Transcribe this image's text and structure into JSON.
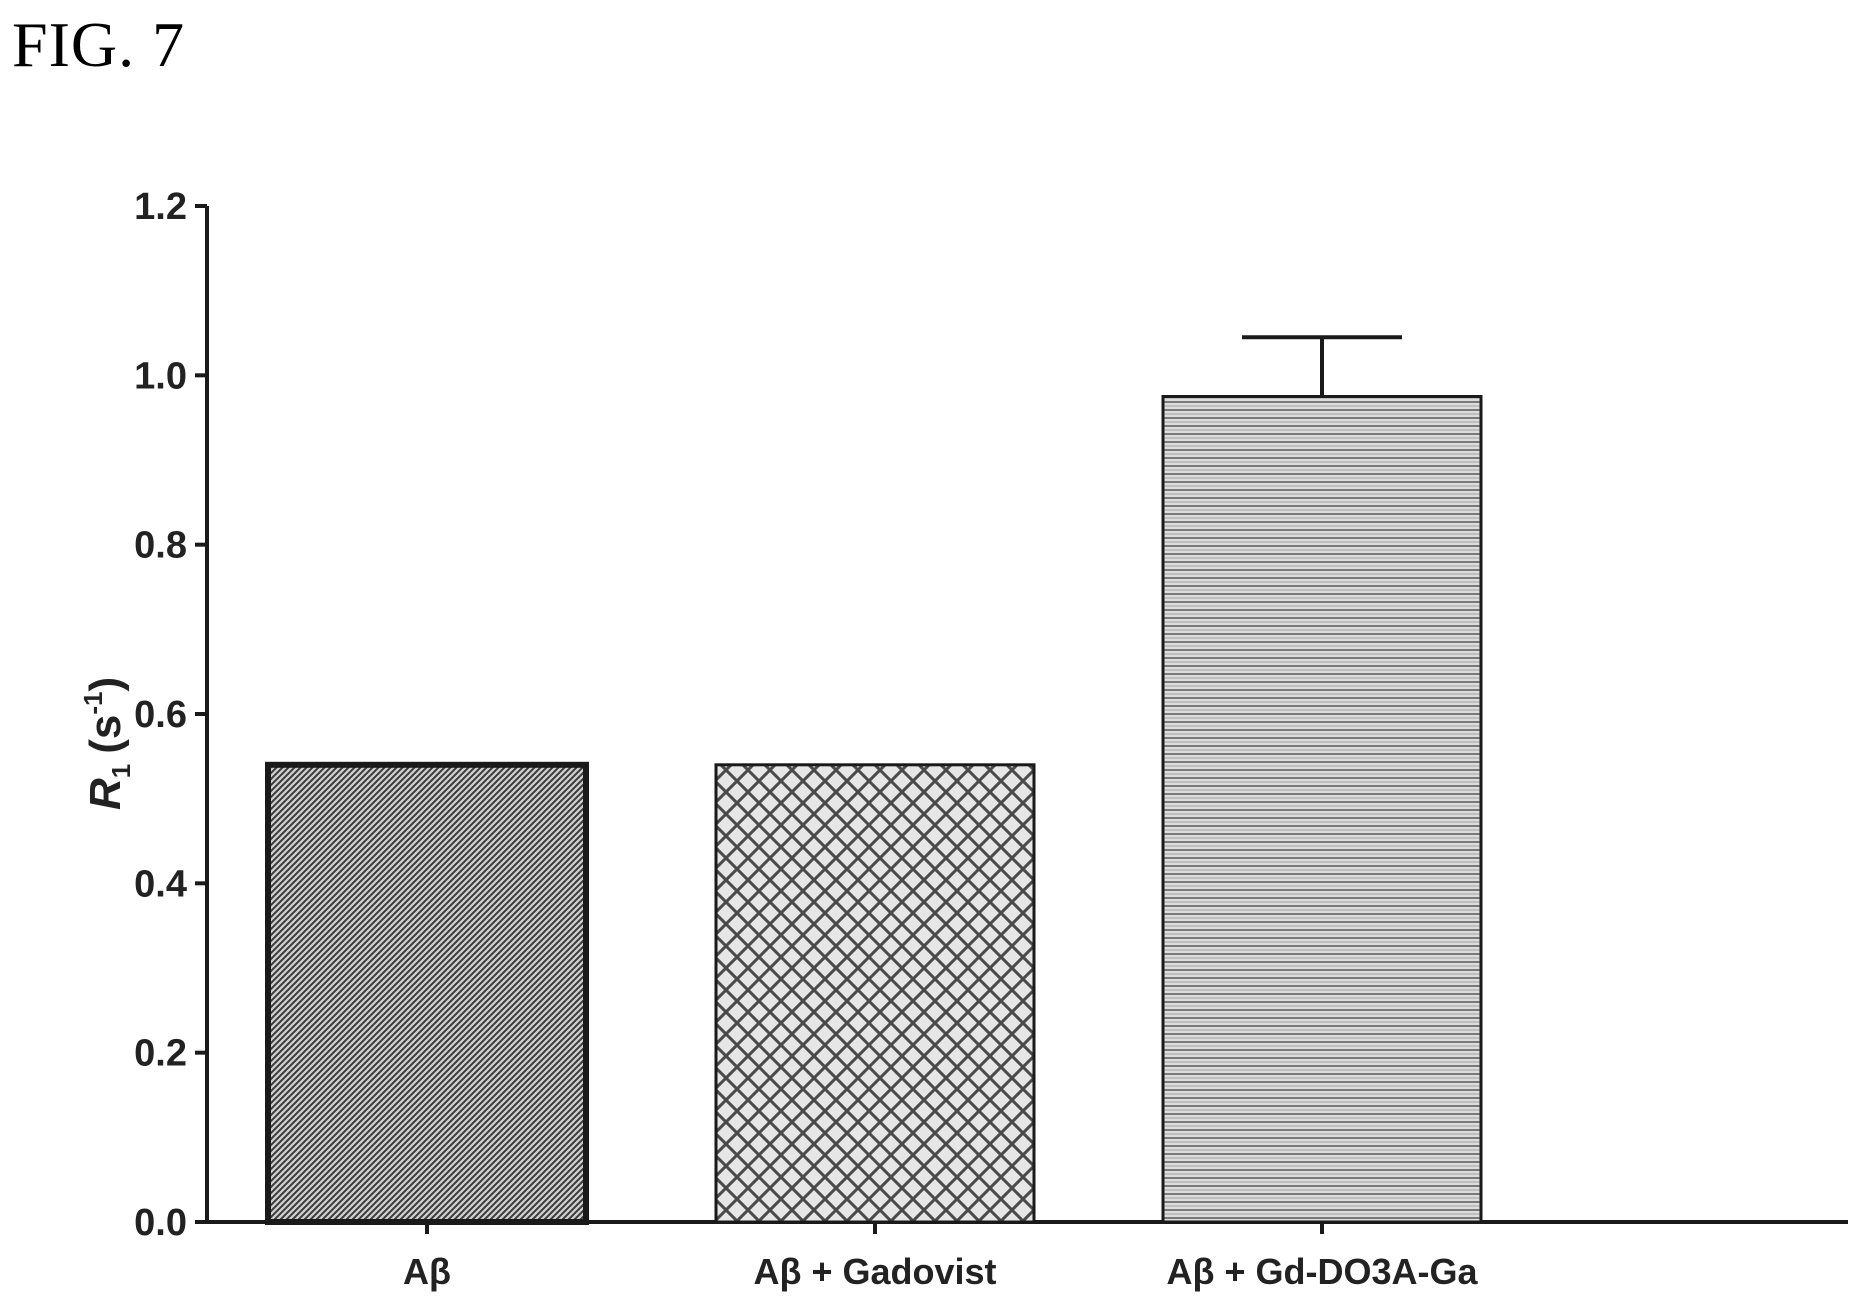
{
  "figure_label": "FIG. 7",
  "chart_data": {
    "type": "bar",
    "title": "",
    "xlabel": "",
    "ylabel": {
      "symbol": "R",
      "subscript": "1",
      "unit": "(s",
      "unit_sup": "-1",
      "unit_close": ")"
    },
    "categories": [
      "Aβ",
      "Aβ + Gadovist",
      "Aβ + Gd-DO3A-Ga"
    ],
    "values": [
      0.54,
      0.54,
      0.975
    ],
    "error_upper": [
      0.0,
      0.0,
      0.07
    ],
    "ylim": [
      0.0,
      1.2
    ],
    "yticks": [
      "0.0",
      "0.2",
      "0.4",
      "0.6",
      "0.8",
      "1.0",
      "1.2"
    ],
    "grid": false,
    "legend": "none",
    "bar_patterns": [
      "dense-diagonal",
      "cross-hatch",
      "horizontal-lines"
    ],
    "colors": {
      "ink": "#1a1a1a",
      "fill_dark": "#555555",
      "fill_mid": "#8a8a8a",
      "fill_light": "#b5b5b5"
    }
  }
}
